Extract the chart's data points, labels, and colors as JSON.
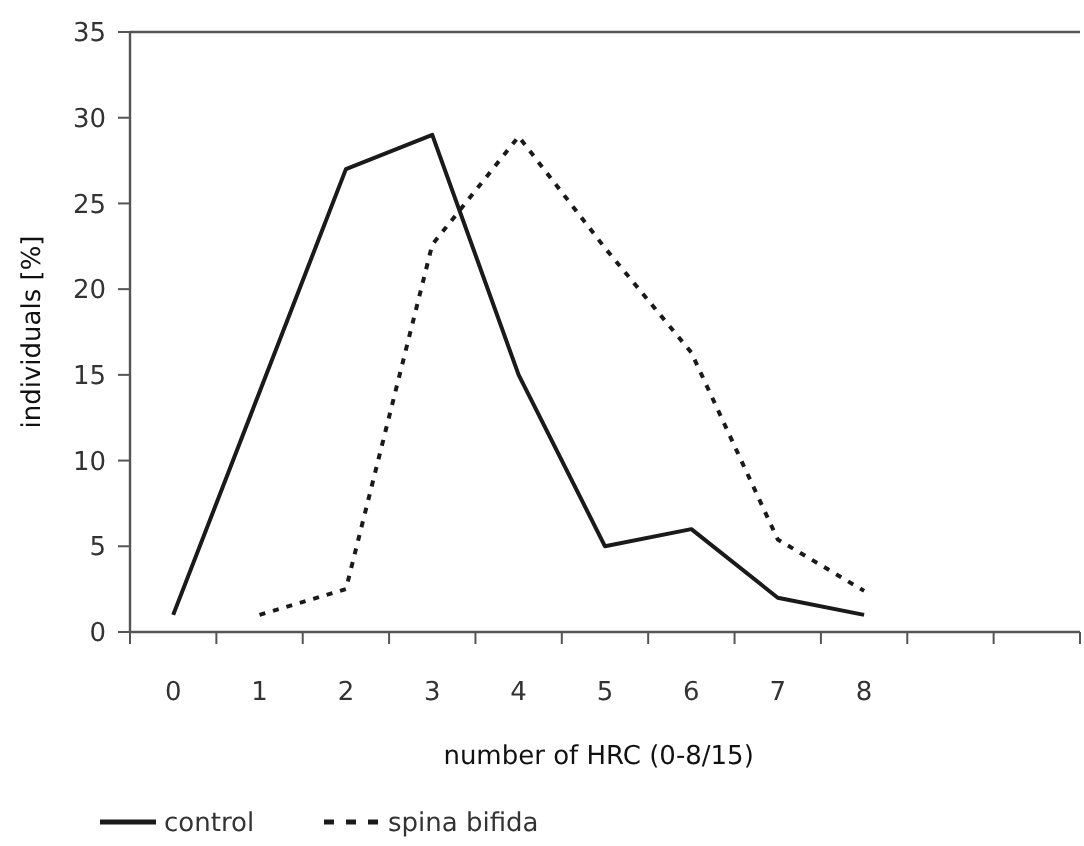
{
  "chart_data": {
    "type": "line",
    "xlabel": "number of HRC (0-8/15)",
    "ylabel": "individuals [%]",
    "categories": [
      "0",
      "1",
      "2",
      "3",
      "4",
      "5",
      "6",
      "7",
      "8",
      null,
      null
    ],
    "ylim": [
      0,
      35
    ],
    "yticks": [
      0,
      5,
      10,
      15,
      20,
      25,
      30,
      35
    ],
    "grid": false,
    "legend": "bottom left",
    "series": [
      {
        "name": "control",
        "color": "#1a1a1a",
        "line_style": "solid",
        "values": [
          1,
          14,
          27,
          29,
          15,
          5,
          6,
          2,
          1,
          null,
          null
        ]
      },
      {
        "name": "spina bifida",
        "color": "#1a1a1a",
        "line_style": "dotted",
        "values": [
          null,
          1,
          2.5,
          22.6,
          28.9,
          22.4,
          16.3,
          5.4,
          2.4,
          null,
          null
        ]
      }
    ]
  }
}
